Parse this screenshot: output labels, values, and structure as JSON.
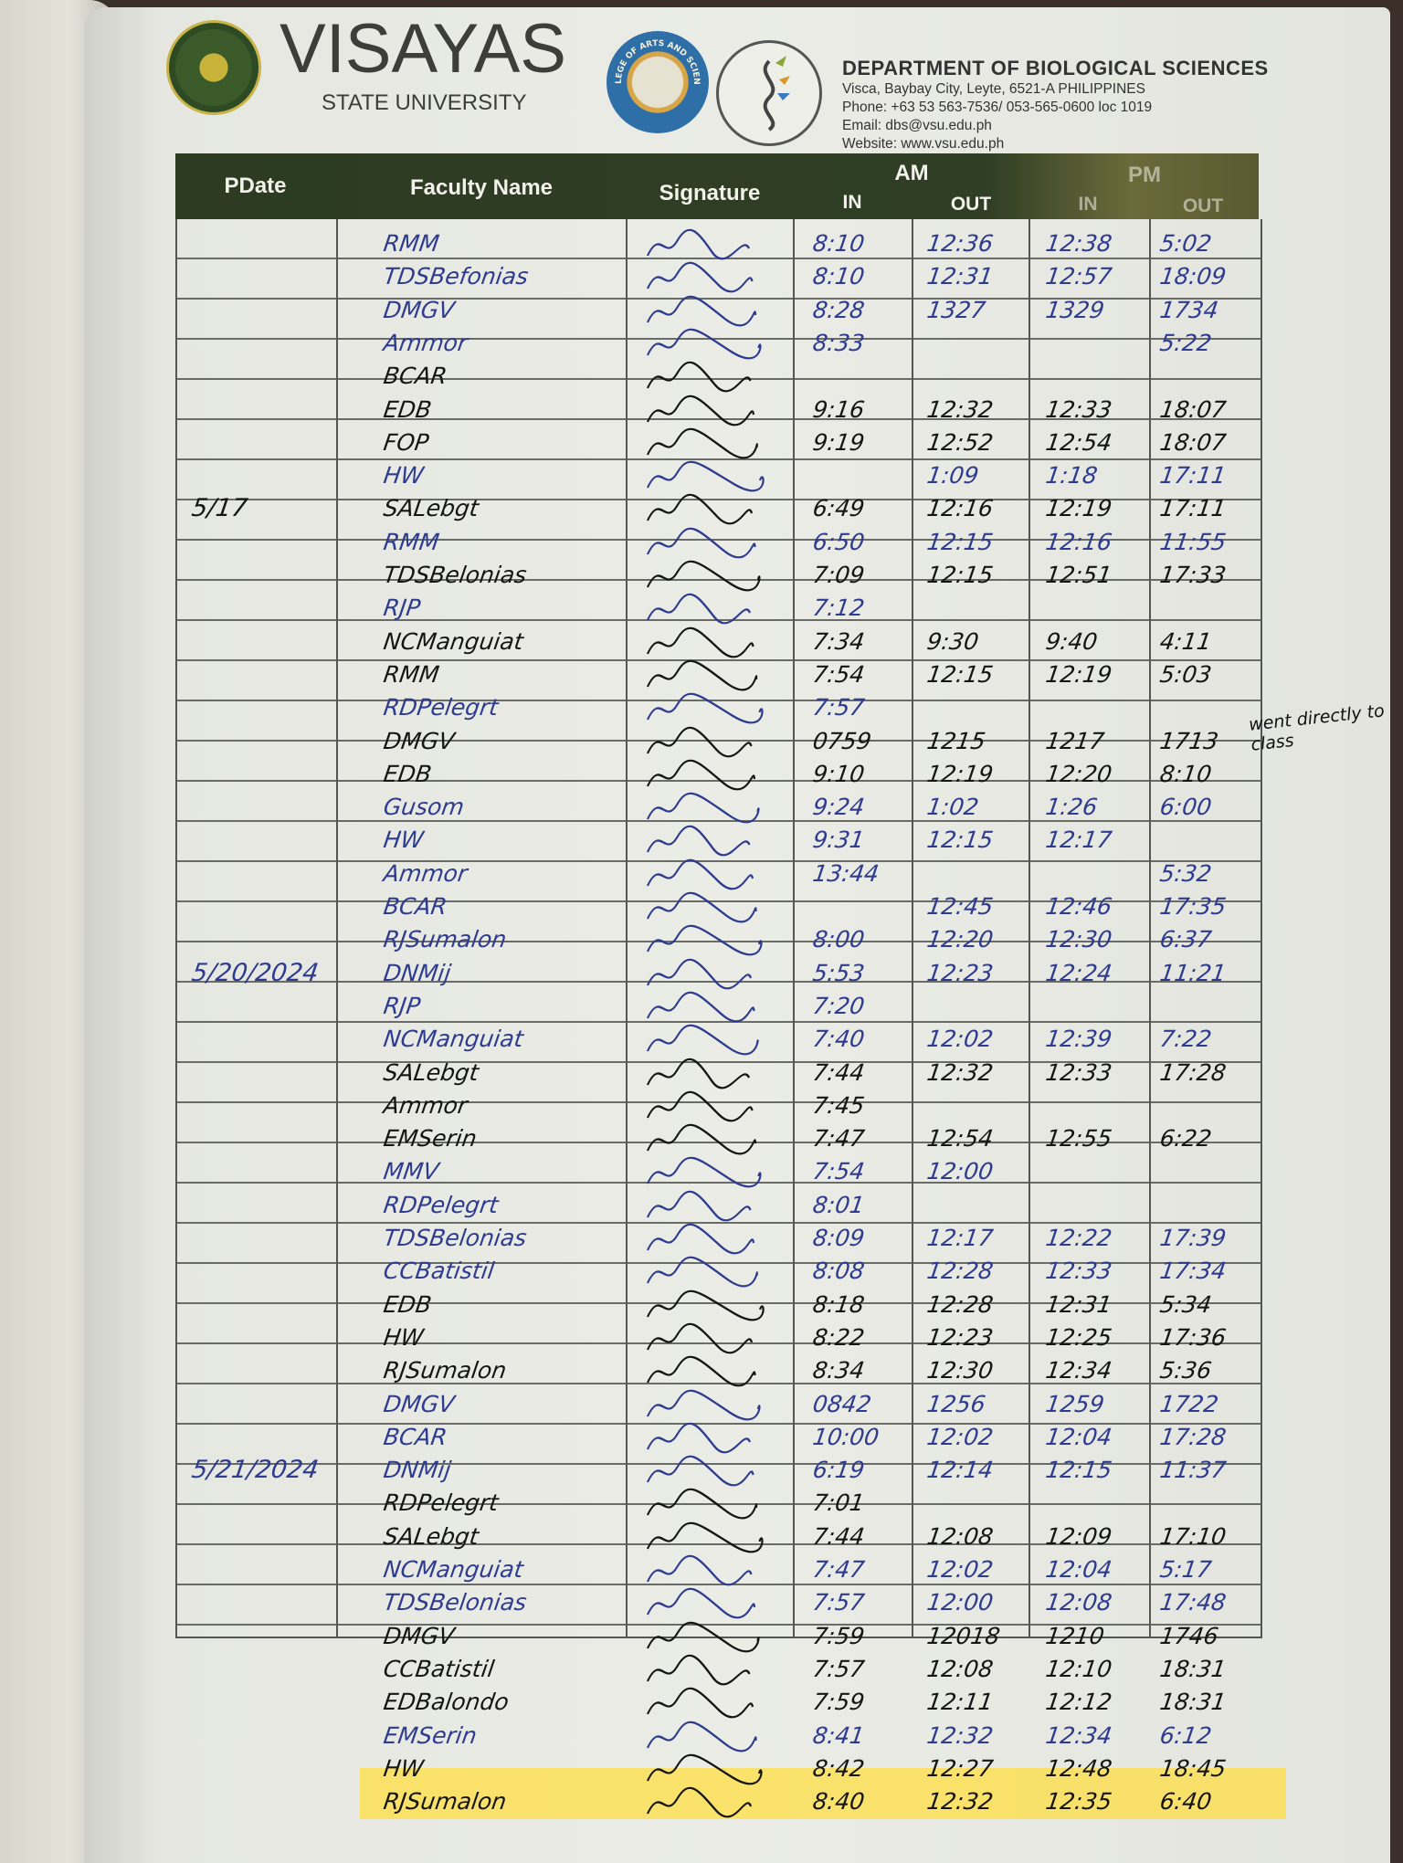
{
  "header": {
    "university_name": "VISAYAS",
    "university_subtitle": "STATE UNIVERSITY",
    "seal_text": "VISAYAS STATE UNIVERSITY",
    "college_logo_text": "COLLEGE OF ARTS AND SCIENCES",
    "department": "DEPARTMENT OF BIOLOGICAL SCIENCES",
    "address": "Visca, Baybay City, Leyte, 6521-A PHILIPPINES",
    "phone": "Phone: +63 53 563-7536/ 053-565-0600 loc 1019",
    "email": "Email: dbs@vsu.edu.ph",
    "website": "Website: www.vsu.edu.ph"
  },
  "table": {
    "columns": {
      "date": "PDate",
      "name": "Faculty Name",
      "signature": "Signature",
      "am": "AM",
      "pm": "PM",
      "in": "IN",
      "out": "OUT"
    },
    "header_color": "#2c3b22",
    "highlight_color": "#ffde3c"
  },
  "margin_note": "went directly to class",
  "entries": [
    {
      "date": "",
      "name": "RMM",
      "am_in": "8:10",
      "am_out": "12:36",
      "pm_in": "12:38",
      "pm_out": "5:02",
      "ink": "blue"
    },
    {
      "date": "",
      "name": "TDSBefonias",
      "am_in": "8:10",
      "am_out": "12:31",
      "pm_in": "12:57",
      "pm_out": "18:09",
      "ink": "blue"
    },
    {
      "date": "",
      "name": "DMGV",
      "am_in": "8:28",
      "am_out": "1327",
      "pm_in": "1329",
      "pm_out": "1734",
      "ink": "blue"
    },
    {
      "date": "",
      "name": "Ammor",
      "am_in": "8:33",
      "am_out": "",
      "pm_in": "",
      "pm_out": "5:22",
      "ink": "blue"
    },
    {
      "date": "",
      "name": "BCAR",
      "am_in": "",
      "am_out": "",
      "pm_in": "",
      "pm_out": "",
      "ink": "black"
    },
    {
      "date": "",
      "name": "EDB",
      "am_in": "9:16",
      "am_out": "12:32",
      "pm_in": "12:33",
      "pm_out": "18:07",
      "ink": "black"
    },
    {
      "date": "",
      "name": "FOP",
      "am_in": "9:19",
      "am_out": "12:52",
      "pm_in": "12:54",
      "pm_out": "18:07",
      "ink": "black"
    },
    {
      "date": "",
      "name": "HW",
      "am_in": "",
      "am_out": "1:09",
      "pm_in": "1:18",
      "pm_out": "17:11",
      "ink": "blue"
    },
    {
      "date": "5/17",
      "name": "SALebgt",
      "am_in": "6:49",
      "am_out": "12:16",
      "pm_in": "12:19",
      "pm_out": "17:11",
      "ink": "black"
    },
    {
      "date": "",
      "name": "RMM",
      "am_in": "6:50",
      "am_out": "12:15",
      "pm_in": "12:16",
      "pm_out": "11:55",
      "ink": "blue"
    },
    {
      "date": "",
      "name": "TDSBelonias",
      "am_in": "7:09",
      "am_out": "12:15",
      "pm_in": "12:51",
      "pm_out": "17:33",
      "ink": "black"
    },
    {
      "date": "",
      "name": "RJP",
      "am_in": "7:12",
      "am_out": "",
      "pm_in": "",
      "pm_out": "",
      "ink": "blue"
    },
    {
      "date": "",
      "name": "NCManguiat",
      "am_in": "7:34",
      "am_out": "9:30",
      "pm_in": "9:40",
      "pm_out": "4:11",
      "ink": "black"
    },
    {
      "date": "",
      "name": "RMM",
      "am_in": "7:54",
      "am_out": "12:15",
      "pm_in": "12:19",
      "pm_out": "5:03",
      "ink": "black"
    },
    {
      "date": "",
      "name": "RDPelegrt",
      "am_in": "7:57",
      "am_out": "",
      "pm_in": "",
      "pm_out": "",
      "ink": "blue"
    },
    {
      "date": "",
      "name": "DMGV",
      "am_in": "0759",
      "am_out": "1215",
      "pm_in": "1217",
      "pm_out": "1713",
      "ink": "black"
    },
    {
      "date": "",
      "name": "EDB",
      "am_in": "9:10",
      "am_out": "12:19",
      "pm_in": "12:20",
      "pm_out": "8:10",
      "ink": "black"
    },
    {
      "date": "",
      "name": "Gusom",
      "am_in": "9:24",
      "am_out": "1:02",
      "pm_in": "1:26",
      "pm_out": "6:00",
      "ink": "blue"
    },
    {
      "date": "",
      "name": "HW",
      "am_in": "9:31",
      "am_out": "12:15",
      "pm_in": "12:17",
      "pm_out": "",
      "ink": "blue"
    },
    {
      "date": "",
      "name": "Ammor",
      "am_in": "13:44",
      "am_out": "",
      "pm_in": "",
      "pm_out": "5:32",
      "ink": "blue"
    },
    {
      "date": "",
      "name": "BCAR",
      "am_in": "",
      "am_out": "12:45",
      "pm_in": "12:46",
      "pm_out": "17:35",
      "ink": "blue"
    },
    {
      "date": "",
      "name": "RJSumalon",
      "am_in": "8:00",
      "am_out": "12:20",
      "pm_in": "12:30",
      "pm_out": "6:37",
      "ink": "blue"
    },
    {
      "date": "5/20/2024",
      "name": "DNMij",
      "am_in": "5:53",
      "am_out": "12:23",
      "pm_in": "12:24",
      "pm_out": "11:21",
      "ink": "blue"
    },
    {
      "date": "",
      "name": "RJP",
      "am_in": "7:20",
      "am_out": "",
      "pm_in": "",
      "pm_out": "",
      "ink": "blue"
    },
    {
      "date": "",
      "name": "NCManguiat",
      "am_in": "7:40",
      "am_out": "12:02",
      "pm_in": "12:39",
      "pm_out": "7:22",
      "ink": "blue"
    },
    {
      "date": "",
      "name": "SALebgt",
      "am_in": "7:44",
      "am_out": "12:32",
      "pm_in": "12:33",
      "pm_out": "17:28",
      "ink": "black"
    },
    {
      "date": "",
      "name": "Ammor",
      "am_in": "7:45",
      "am_out": "",
      "pm_in": "",
      "pm_out": "",
      "ink": "black"
    },
    {
      "date": "",
      "name": "EMSerin",
      "am_in": "7:47",
      "am_out": "12:54",
      "pm_in": "12:55",
      "pm_out": "6:22",
      "ink": "black"
    },
    {
      "date": "",
      "name": "MMV",
      "am_in": "7:54",
      "am_out": "12:00",
      "pm_in": "",
      "pm_out": "",
      "ink": "blue"
    },
    {
      "date": "",
      "name": "RDPelegrt",
      "am_in": "8:01",
      "am_out": "",
      "pm_in": "",
      "pm_out": "",
      "ink": "blue"
    },
    {
      "date": "",
      "name": "TDSBelonias",
      "am_in": "8:09",
      "am_out": "12:17",
      "pm_in": "12:22",
      "pm_out": "17:39",
      "ink": "blue"
    },
    {
      "date": "",
      "name": "CCBatistil",
      "am_in": "8:08",
      "am_out": "12:28",
      "pm_in": "12:33",
      "pm_out": "17:34",
      "ink": "blue"
    },
    {
      "date": "",
      "name": "EDB",
      "am_in": "8:18",
      "am_out": "12:28",
      "pm_in": "12:31",
      "pm_out": "5:34",
      "ink": "black"
    },
    {
      "date": "",
      "name": "HW",
      "am_in": "8:22",
      "am_out": "12:23",
      "pm_in": "12:25",
      "pm_out": "17:36",
      "ink": "black"
    },
    {
      "date": "",
      "name": "RJSumalon",
      "am_in": "8:34",
      "am_out": "12:30",
      "pm_in": "12:34",
      "pm_out": "5:36",
      "ink": "black"
    },
    {
      "date": "",
      "name": "DMGV",
      "am_in": "0842",
      "am_out": "1256",
      "pm_in": "1259",
      "pm_out": "1722",
      "ink": "blue"
    },
    {
      "date": "",
      "name": "BCAR",
      "am_in": "10:00",
      "am_out": "12:02",
      "pm_in": "12:04",
      "pm_out": "17:28",
      "ink": "blue"
    },
    {
      "date": "5/21/2024",
      "name": "DNMij",
      "am_in": "6:19",
      "am_out": "12:14",
      "pm_in": "12:15",
      "pm_out": "11:37",
      "ink": "blue"
    },
    {
      "date": "",
      "name": "RDPelegrt",
      "am_in": "7:01",
      "am_out": "",
      "pm_in": "",
      "pm_out": "",
      "ink": "black"
    },
    {
      "date": "",
      "name": "SALebgt",
      "am_in": "7:44",
      "am_out": "12:08",
      "pm_in": "12:09",
      "pm_out": "17:10",
      "ink": "black"
    },
    {
      "date": "",
      "name": "NCManguiat",
      "am_in": "7:47",
      "am_out": "12:02",
      "pm_in": "12:04",
      "pm_out": "5:17",
      "ink": "blue"
    },
    {
      "date": "",
      "name": "TDSBelonias",
      "am_in": "7:57",
      "am_out": "12:00",
      "pm_in": "12:08",
      "pm_out": "17:48",
      "ink": "blue"
    },
    {
      "date": "",
      "name": "DMGV",
      "am_in": "7:59",
      "am_out": "12018",
      "pm_in": "1210",
      "pm_out": "1746",
      "ink": "black"
    },
    {
      "date": "",
      "name": "CCBatistil",
      "am_in": "7:57",
      "am_out": "12:08",
      "pm_in": "12:10",
      "pm_out": "18:31",
      "ink": "black"
    },
    {
      "date": "",
      "name": "EDBalondo",
      "am_in": "7:59",
      "am_out": "12:11",
      "pm_in": "12:12",
      "pm_out": "18:31",
      "ink": "black"
    },
    {
      "date": "",
      "name": "EMSerin",
      "am_in": "8:41",
      "am_out": "12:32",
      "pm_in": "12:34",
      "pm_out": "6:12",
      "ink": "blue"
    },
    {
      "date": "",
      "name": "HW",
      "am_in": "8:42",
      "am_out": "12:27",
      "pm_in": "12:48",
      "pm_out": "18:45",
      "ink": "black"
    },
    {
      "date": "",
      "name": "RJSumalon",
      "am_in": "8:40",
      "am_out": "12:32",
      "pm_in": "12:35",
      "pm_out": "6:40",
      "ink": "black"
    }
  ]
}
